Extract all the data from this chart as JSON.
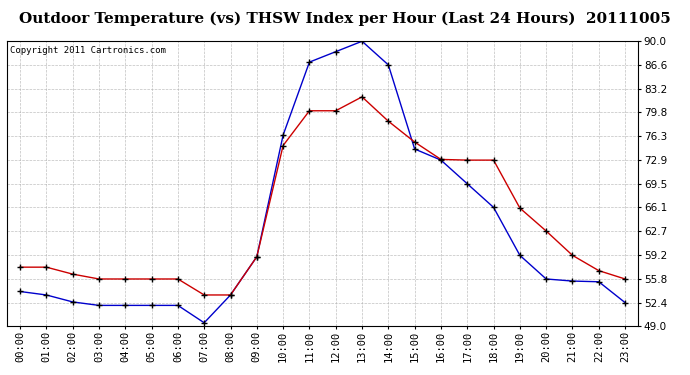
{
  "title": "Outdoor Temperature (vs) THSW Index per Hour (Last 24 Hours)  20111005",
  "copyright_text": "Copyright 2011 Cartronics.com",
  "hours": [
    "00:00",
    "01:00",
    "02:00",
    "03:00",
    "04:00",
    "05:00",
    "06:00",
    "07:00",
    "08:00",
    "09:00",
    "10:00",
    "11:00",
    "12:00",
    "13:00",
    "14:00",
    "15:00",
    "16:00",
    "17:00",
    "18:00",
    "19:00",
    "20:00",
    "21:00",
    "22:00",
    "23:00"
  ],
  "blue_line": [
    54.0,
    53.5,
    52.5,
    52.0,
    52.0,
    52.0,
    52.0,
    49.5,
    53.5,
    59.0,
    76.5,
    87.0,
    88.5,
    90.0,
    86.6,
    74.5,
    72.9,
    69.5,
    66.1,
    59.2,
    55.8,
    55.5,
    55.4,
    52.4
  ],
  "red_line": [
    57.5,
    57.5,
    56.5,
    55.8,
    55.8,
    55.8,
    55.8,
    53.5,
    53.5,
    59.0,
    75.0,
    80.0,
    80.0,
    82.0,
    78.5,
    75.5,
    73.0,
    72.9,
    72.9,
    66.0,
    62.7,
    59.2,
    57.0,
    55.8
  ],
  "ylim": [
    49.0,
    90.0
  ],
  "yticks": [
    49.0,
    52.4,
    55.8,
    59.2,
    62.7,
    66.1,
    69.5,
    72.9,
    76.3,
    79.8,
    83.2,
    86.6,
    90.0
  ],
  "blue_color": "#0000cc",
  "red_color": "#cc0000",
  "bg_color": "#ffffff",
  "grid_color": "#b0b0b0",
  "title_fontsize": 11,
  "tick_fontsize": 7.5,
  "copyright_fontsize": 6.5
}
